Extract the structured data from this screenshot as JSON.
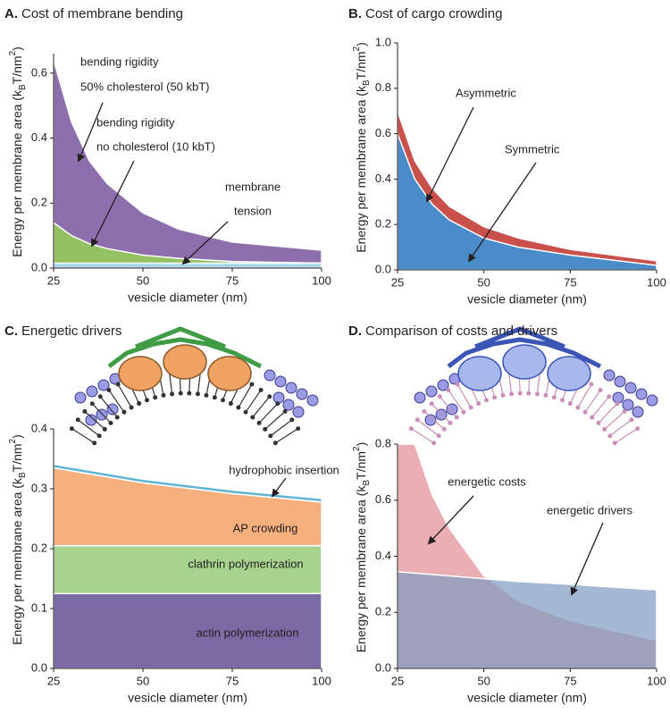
{
  "chart_data": [
    {
      "label": "A.",
      "title": "Cost of membrane bending",
      "type": "area",
      "stacked": false,
      "x": [
        25,
        30,
        35,
        40,
        50,
        60,
        75,
        100
      ],
      "series": [
        {
          "name": "50% cholesterol (50 kbT)",
          "color": "#8e6fae",
          "values": [
            0.64,
            0.45,
            0.33,
            0.26,
            0.17,
            0.12,
            0.08,
            0.055
          ]
        },
        {
          "name": "no cholesterol (10 kbT)",
          "color": "#94c161",
          "values": [
            0.14,
            0.1,
            0.075,
            0.06,
            0.04,
            0.03,
            0.02,
            0.015
          ]
        },
        {
          "name": "tension",
          "color": "#a8d8ea",
          "values": [
            0.015,
            0.015,
            0.015,
            0.015,
            0.015,
            0.015,
            0.015,
            0.015
          ]
        }
      ],
      "xlim": [
        25,
        100
      ],
      "ylim": [
        0,
        0.66
      ],
      "xticks": [
        25,
        50,
        75,
        100
      ],
      "yticks": [
        {
          "value": 0,
          "label": "0.0"
        },
        0.2,
        0.4,
        0.6
      ],
      "xlabel": "vesicle diameter (nm)",
      "ylabel": [
        "Energy per membrane area (k",
        "B",
        "T/nm",
        "2",
        ")"
      ],
      "annotations": [
        "bending rigidity",
        "50% cholesterol (50 kbT)",
        "bending rigidity",
        "no cholesterol (10 kbT)",
        "membrane",
        "tension"
      ]
    },
    {
      "label": "B.",
      "title": "Cost of cargo crowding",
      "type": "area",
      "stacked": false,
      "x": [
        25,
        30,
        35,
        40,
        50,
        60,
        75,
        100
      ],
      "series": [
        {
          "name": "Asymmetric",
          "color": "#c9504b",
          "values": [
            0.7,
            0.48,
            0.36,
            0.28,
            0.19,
            0.14,
            0.09,
            0.04
          ]
        },
        {
          "name": "Symmetric",
          "color": "#4a8cc9",
          "values": [
            0.6,
            0.4,
            0.29,
            0.22,
            0.14,
            0.1,
            0.065,
            0.02
          ]
        }
      ],
      "xlim": [
        25,
        100
      ],
      "ylim": [
        0,
        1
      ],
      "xticks": [
        25,
        50,
        75,
        100
      ],
      "yticks": [
        {
          "value": 0,
          "label": "0.0"
        },
        0.2,
        0.4,
        0.6,
        0.8,
        {
          "value": 1,
          "label": "1.0"
        }
      ],
      "xlabel": "vesicle diameter (nm)",
      "ylabel": [
        "Energy per membrane area (k",
        "B",
        "T/nm",
        "2",
        ")"
      ]
    },
    {
      "label": "C.",
      "title": "Energetic drivers",
      "type": "area",
      "stacked": true,
      "x": [
        25,
        50,
        75,
        100
      ],
      "series": [
        {
          "name": "actin polymerization",
          "color": "#7b6aa3",
          "values": [
            0.125,
            0.125,
            0.125,
            0.125
          ]
        },
        {
          "name": "clathrin polymerization",
          "color": "#a6d48e",
          "values": [
            0.08,
            0.08,
            0.08,
            0.08
          ]
        },
        {
          "name": "AP crowding",
          "color": "#f5b07e",
          "values": [
            0.13,
            0.105,
            0.087,
            0.073
          ]
        },
        {
          "name": "hydrophobic insertion",
          "color": "#5fb4d4",
          "values": [
            0.006,
            0.006,
            0.006,
            0.006
          ]
        }
      ],
      "xlim": [
        25,
        100
      ],
      "ylim": [
        0,
        0.4
      ],
      "xticks": [
        25,
        50,
        75,
        100
      ],
      "yticks": [
        {
          "value": 0,
          "label": "0.0"
        },
        0.1,
        0.2,
        0.3,
        0.4
      ],
      "xlabel": "vesicle diameter (nm)",
      "ylabel": [
        "Energy per membrane area (k",
        "B",
        "T/nm",
        "2",
        ")"
      ]
    },
    {
      "label": "D.",
      "title": "Comparison of costs and drivers",
      "type": "area",
      "stacked": false,
      "opacity": 0.7,
      "x": [
        25,
        30,
        35,
        40,
        50,
        60,
        75,
        100
      ],
      "series": [
        {
          "name": "energetic costs",
          "color": "#e28d93",
          "values": [
            0.8,
            0.8,
            0.62,
            0.5,
            0.33,
            0.24,
            0.17,
            0.1
          ]
        },
        {
          "name": "energetic drivers",
          "color": "#7f9ac0",
          "values": [
            0.345,
            0.34,
            0.335,
            0.33,
            0.32,
            0.31,
            0.3,
            0.28
          ]
        }
      ],
      "xlim": [
        25,
        100
      ],
      "ylim": [
        0,
        0.8
      ],
      "xticks": [
        25,
        50,
        75,
        100
      ],
      "yticks": [
        {
          "value": 0,
          "label": "0.0"
        },
        0.2,
        0.4,
        0.6,
        0.8
      ],
      "xlabel": "vesicle diameter (nm)",
      "ylabel": [
        "Energy per membrane area (k",
        "B",
        "T/nm",
        "2",
        ")"
      ]
    }
  ]
}
